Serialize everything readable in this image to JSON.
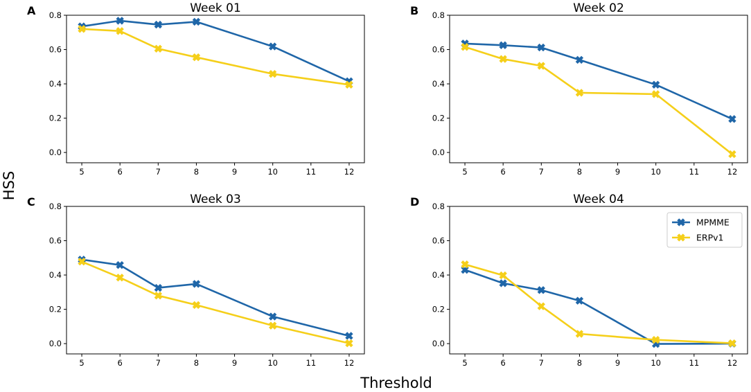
{
  "figure": {
    "ylabel": "HSS",
    "xlabel": "Threshold"
  },
  "colors": {
    "MPMME": "#1f66a8",
    "ERPv1": "#f5cf1a"
  },
  "chart_data": [
    {
      "type": "line",
      "panel_label": "A",
      "title": "Week 01",
      "x": [
        5,
        6,
        7,
        8,
        10,
        12
      ],
      "xticks": [
        5,
        6,
        7,
        8,
        9,
        10,
        11,
        12
      ],
      "xlim": [
        4.6,
        12.4
      ],
      "yticks": [
        "0.0",
        "0.2",
        "0.4",
        "0.6",
        "0.8"
      ],
      "ylim": [
        -0.06,
        0.8
      ],
      "series": [
        {
          "name": "MPMME",
          "values": [
            0.735,
            0.768,
            0.745,
            0.762,
            0.618,
            0.415
          ]
        },
        {
          "name": "ERPv1",
          "values": [
            0.72,
            0.708,
            0.605,
            0.555,
            0.458,
            0.395
          ]
        }
      ],
      "legend": null
    },
    {
      "type": "line",
      "panel_label": "B",
      "title": "Week 02",
      "x": [
        5,
        6,
        7,
        8,
        10,
        12
      ],
      "xticks": [
        5,
        6,
        7,
        8,
        9,
        10,
        11,
        12
      ],
      "xlim": [
        4.6,
        12.4
      ],
      "yticks": [
        "0.0",
        "0.2",
        "0.4",
        "0.6",
        "0.8"
      ],
      "ylim": [
        -0.06,
        0.8
      ],
      "series": [
        {
          "name": "MPMME",
          "values": [
            0.635,
            0.625,
            0.612,
            0.54,
            0.395,
            0.195
          ]
        },
        {
          "name": "ERPv1",
          "values": [
            0.615,
            0.545,
            0.505,
            0.348,
            0.34,
            -0.01
          ]
        }
      ],
      "legend": null
    },
    {
      "type": "line",
      "panel_label": "C",
      "title": "Week 03",
      "x": [
        5,
        6,
        7,
        8,
        10,
        12
      ],
      "xticks": [
        5,
        6,
        7,
        8,
        9,
        10,
        11,
        12
      ],
      "xlim": [
        4.6,
        12.4
      ],
      "yticks": [
        "0.0",
        "0.2",
        "0.4",
        "0.6",
        "0.8"
      ],
      "ylim": [
        -0.06,
        0.8
      ],
      "series": [
        {
          "name": "MPMME",
          "values": [
            0.49,
            0.458,
            0.325,
            0.348,
            0.158,
            0.045
          ]
        },
        {
          "name": "ERPv1",
          "values": [
            0.478,
            0.385,
            0.28,
            0.225,
            0.105,
            0.002
          ]
        }
      ],
      "legend": null
    },
    {
      "type": "line",
      "panel_label": "D",
      "title": "Week 04",
      "x": [
        5,
        6,
        7,
        8,
        10,
        12
      ],
      "xticks": [
        5,
        6,
        7,
        8,
        9,
        10,
        11,
        12
      ],
      "xlim": [
        4.6,
        12.4
      ],
      "yticks": [
        "0.0",
        "0.2",
        "0.4",
        "0.6",
        "0.8"
      ],
      "ylim": [
        -0.06,
        0.8
      ],
      "series": [
        {
          "name": "MPMME",
          "values": [
            0.43,
            0.352,
            0.312,
            0.25,
            -0.002,
            0.0
          ]
        },
        {
          "name": "ERPv1",
          "values": [
            0.462,
            0.398,
            0.218,
            0.057,
            0.022,
            0.002
          ]
        }
      ],
      "legend": {
        "placement": "top-right",
        "entries": [
          "MPMME",
          "ERPv1"
        ]
      }
    }
  ]
}
